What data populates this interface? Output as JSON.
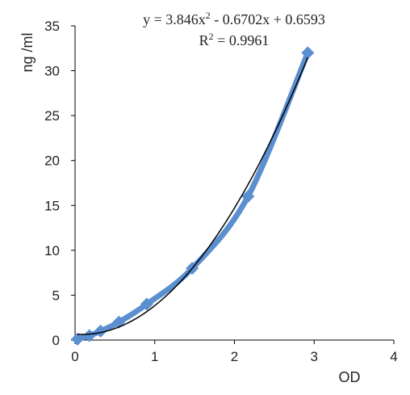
{
  "chart_data": {
    "type": "scatter",
    "xlabel": "OD",
    "ylabel": "ng /ml",
    "xlim": [
      0,
      4
    ],
    "ylim": [
      0,
      35
    ],
    "xticks": [
      "0",
      "1",
      "2",
      "3",
      "4"
    ],
    "yticks": [
      "0",
      "5",
      "10",
      "15",
      "20",
      "25",
      "30",
      "35"
    ],
    "grid": false,
    "series": [
      {
        "x": [
          0.03,
          0.18,
          0.32,
          0.55,
          0.9,
          1.47,
          2.17,
          2.92
        ],
        "y": [
          0.1,
          0.5,
          1.0,
          2.0,
          4.0,
          8.0,
          16.0,
          32.0
        ],
        "color": "#5b8fd0"
      }
    ],
    "trendline": {
      "type": "polynomial",
      "coefficients": [
        3.846,
        -0.6702,
        0.6593
      ],
      "color": "#000000",
      "equation_prefix": "y = 3.846x",
      "equation_exp": "2",
      "equation_suffix": " - 0.6702x + 0.6593",
      "r2_prefix": "R",
      "r2_exp": "2",
      "r2_suffix": " = 0.9961"
    }
  }
}
